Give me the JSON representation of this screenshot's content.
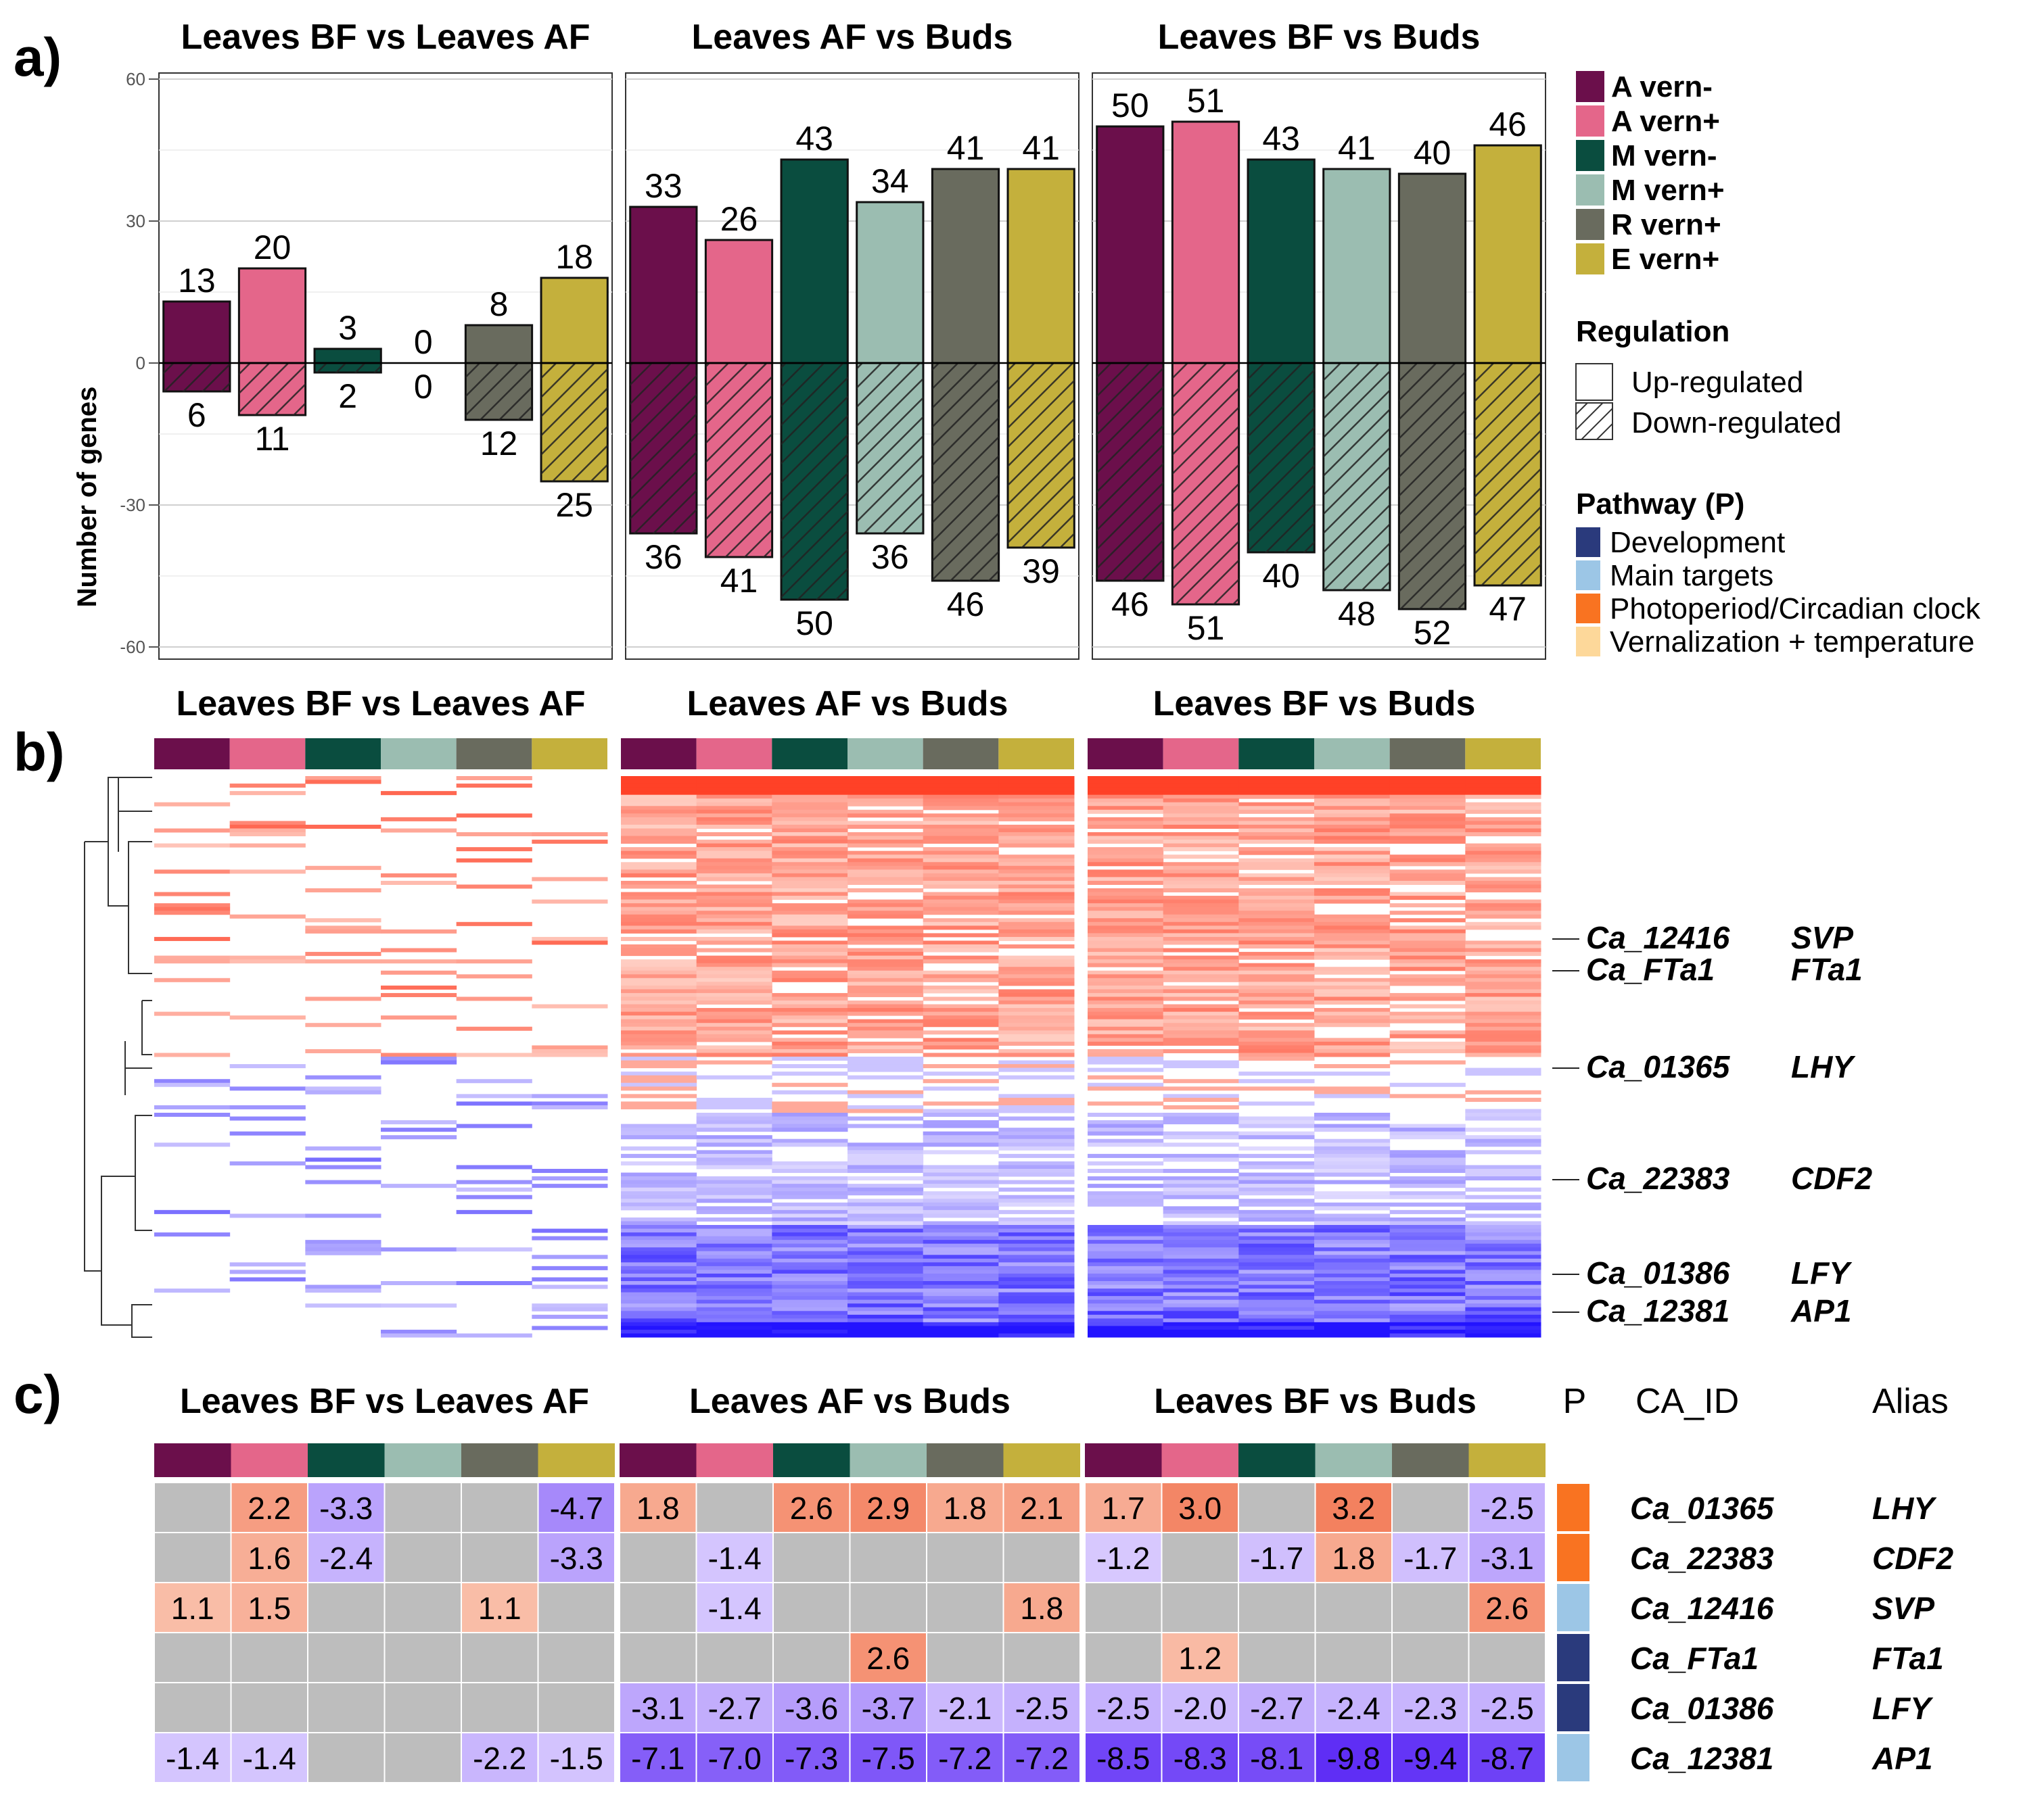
{
  "panel_labels": {
    "a": "a)",
    "b": "b)",
    "c": "c)"
  },
  "comparisons": [
    "Leaves BF vs Leaves AF",
    "Leaves AF vs Buds",
    "Leaves BF vs Buds"
  ],
  "groups": [
    "A vern-",
    "A vern+",
    "M vern-",
    "M vern+",
    "R vern+",
    "E vern+"
  ],
  "group_colors": [
    "#6b0f4b",
    "#e4668a",
    "#0a4d3f",
    "#9bbdb1",
    "#696b5e",
    "#c4b03c"
  ],
  "chart_data": {
    "type": "bar",
    "title": "",
    "ylabel": "Number of genes",
    "xlabel": "",
    "ylim": [
      -62,
      62
    ],
    "yticks": [
      60,
      30,
      0,
      -30,
      -60
    ],
    "categories": [
      "A vern-",
      "A vern+",
      "M vern-",
      "M vern+",
      "R vern+",
      "E vern+"
    ],
    "facets": [
      {
        "name": "Leaves BF vs Leaves AF",
        "up": [
          13,
          20,
          3,
          0,
          8,
          18
        ],
        "down": [
          6,
          11,
          2,
          0,
          12,
          25
        ]
      },
      {
        "name": "Leaves AF vs Buds",
        "up": [
          33,
          26,
          43,
          34,
          41,
          41
        ],
        "down": [
          36,
          41,
          50,
          36,
          46,
          39
        ]
      },
      {
        "name": "Leaves BF vs Buds",
        "up": [
          50,
          51,
          43,
          41,
          40,
          46
        ],
        "down": [
          46,
          51,
          40,
          48,
          52,
          47
        ]
      }
    ],
    "legend": {
      "regulation_title": "Regulation",
      "regulation": [
        "Up-regulated",
        "Down-regulated"
      ],
      "pathway_title": "Pathway (P)",
      "pathways": [
        {
          "name": "Development",
          "color": "#2a3a7c"
        },
        {
          "name": "Main targets",
          "color": "#9cc6e6"
        },
        {
          "name": "Photoperiod/Circadian clock",
          "color": "#f97321"
        },
        {
          "name": "Vernalization + temperature",
          "color": "#fdd89a"
        }
      ]
    }
  },
  "heatmap_labels": [
    {
      "id": "Ca_12416",
      "alias": "SVP"
    },
    {
      "id": "Ca_FTa1",
      "alias": "FTa1"
    },
    {
      "id": "Ca_01365",
      "alias": "LHY"
    },
    {
      "id": "Ca_22383",
      "alias": "CDF2"
    },
    {
      "id": "Ca_01386",
      "alias": "LFY"
    },
    {
      "id": "Ca_12381",
      "alias": "AP1"
    }
  ],
  "table": {
    "headers": {
      "p": "P",
      "id": "CA_ID",
      "alias": "Alias"
    },
    "rows": [
      {
        "id": "Ca_01365",
        "alias": "LHY",
        "pathway": "#f97321",
        "values": [
          "",
          "2.2",
          "-3.3",
          "",
          "",
          "-4.7",
          "1.8",
          "",
          "2.6",
          "2.9",
          "1.8",
          "2.1",
          "1.7",
          "3.0",
          "",
          "3.2",
          "",
          "-2.5"
        ]
      },
      {
        "id": "Ca_22383",
        "alias": "CDF2",
        "pathway": "#f97321",
        "values": [
          "",
          "1.6",
          "-2.4",
          "",
          "",
          "-3.3",
          "",
          "-1.4",
          "",
          "",
          "",
          "",
          "-1.2",
          "",
          "-1.7",
          "1.8",
          "-1.7",
          "-3.1"
        ]
      },
      {
        "id": "Ca_12416",
        "alias": "SVP",
        "pathway": "#9cc6e6",
        "values": [
          "1.1",
          "1.5",
          "",
          "",
          "1.1",
          "",
          "",
          "-1.4",
          "",
          "",
          "",
          "1.8",
          "",
          "",
          "",
          "",
          "",
          "2.6"
        ]
      },
      {
        "id": "Ca_FTa1",
        "alias": "FTa1",
        "pathway": "#2a3a7c",
        "values": [
          "",
          "",
          "",
          "",
          "",
          "",
          "",
          "",
          "",
          "2.6",
          "",
          "",
          "",
          "1.2",
          "",
          "",
          "",
          ""
        ]
      },
      {
        "id": "Ca_01386",
        "alias": "LFY",
        "pathway": "#2a3a7c",
        "values": [
          "",
          "",
          "",
          "",
          "",
          "",
          "-3.1",
          "-2.7",
          "-3.6",
          "-3.7",
          "-2.1",
          "-2.5",
          "-2.5",
          "-2.0",
          "-2.7",
          "-2.4",
          "-2.3",
          "-2.5"
        ]
      },
      {
        "id": "Ca_12381",
        "alias": "AP1",
        "pathway": "#9cc6e6",
        "values": [
          "-1.4",
          "-1.4",
          "",
          "",
          "-2.2",
          "-1.5",
          "-7.1",
          "-7.0",
          "-7.3",
          "-7.5",
          "-7.2",
          "-7.2",
          "-8.5",
          "-8.3",
          "-8.1",
          "-9.8",
          "-9.4",
          "-8.7"
        ]
      }
    ]
  }
}
